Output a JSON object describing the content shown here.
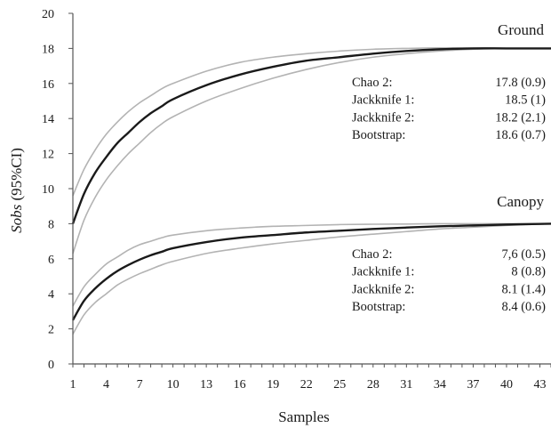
{
  "chart_data": {
    "type": "line",
    "xlabel": "Samples",
    "ylabel_italic": "Sobs",
    "ylabel_rest": " (95%CI)",
    "xlim": [
      1,
      44
    ],
    "ylim": [
      0,
      20
    ],
    "xticks": [
      1,
      4,
      7,
      10,
      13,
      16,
      19,
      22,
      25,
      28,
      31,
      34,
      37,
      40,
      43
    ],
    "yticks": [
      0,
      2,
      4,
      6,
      8,
      10,
      12,
      14,
      16,
      18,
      20
    ],
    "grid": false,
    "colors": {
      "mean": "#1a1a1a",
      "ci": "#b3b3b3",
      "axis": "#555555"
    },
    "groups": [
      {
        "name": "Ground",
        "mean": [
          [
            1,
            8.0
          ],
          [
            2,
            9.7
          ],
          [
            3,
            10.9
          ],
          [
            4,
            11.8
          ],
          [
            5,
            12.6
          ],
          [
            6,
            13.2
          ],
          [
            7,
            13.8
          ],
          [
            8,
            14.3
          ],
          [
            9,
            14.7
          ],
          [
            10,
            15.1
          ],
          [
            13,
            15.9
          ],
          [
            16,
            16.5
          ],
          [
            19,
            16.95
          ],
          [
            22,
            17.3
          ],
          [
            25,
            17.5
          ],
          [
            28,
            17.7
          ],
          [
            31,
            17.85
          ],
          [
            34,
            17.95
          ],
          [
            37,
            18.0
          ],
          [
            40,
            18.0
          ],
          [
            44,
            18.0
          ]
        ],
        "upper": [
          [
            1,
            9.6
          ],
          [
            2,
            11.1
          ],
          [
            3,
            12.2
          ],
          [
            4,
            13.1
          ],
          [
            5,
            13.8
          ],
          [
            6,
            14.4
          ],
          [
            7,
            14.9
          ],
          [
            8,
            15.3
          ],
          [
            9,
            15.7
          ],
          [
            10,
            16.0
          ],
          [
            13,
            16.7
          ],
          [
            16,
            17.2
          ],
          [
            19,
            17.5
          ],
          [
            22,
            17.7
          ],
          [
            25,
            17.85
          ],
          [
            28,
            17.95
          ],
          [
            31,
            18.0
          ],
          [
            34,
            18.03
          ],
          [
            37,
            18.02
          ],
          [
            40,
            18.0
          ],
          [
            44,
            18.0
          ]
        ],
        "lower": [
          [
            1,
            6.3
          ],
          [
            2,
            8.2
          ],
          [
            3,
            9.5
          ],
          [
            4,
            10.5
          ],
          [
            5,
            11.3
          ],
          [
            6,
            12.0
          ],
          [
            7,
            12.6
          ],
          [
            8,
            13.2
          ],
          [
            9,
            13.7
          ],
          [
            10,
            14.1
          ],
          [
            13,
            15.0
          ],
          [
            16,
            15.7
          ],
          [
            19,
            16.3
          ],
          [
            22,
            16.8
          ],
          [
            25,
            17.2
          ],
          [
            28,
            17.5
          ],
          [
            31,
            17.7
          ],
          [
            34,
            17.85
          ],
          [
            37,
            17.95
          ],
          [
            40,
            18.0
          ],
          [
            44,
            18.0
          ]
        ],
        "estimators": [
          {
            "label": "Chao 2:",
            "value": "17.8 (0.9)"
          },
          {
            "label": "Jackknife 1:",
            "value": "18.5 (1)"
          },
          {
            "label": "Jackknife 2:",
            "value": "18.2 (2.1)"
          },
          {
            "label": "Bootstrap:",
            "value": "18.6 (0.7)"
          }
        ]
      },
      {
        "name": "Canopy",
        "mean": [
          [
            1,
            2.5
          ],
          [
            2,
            3.6
          ],
          [
            3,
            4.3
          ],
          [
            4,
            4.85
          ],
          [
            5,
            5.3
          ],
          [
            6,
            5.65
          ],
          [
            7,
            5.95
          ],
          [
            8,
            6.2
          ],
          [
            9,
            6.4
          ],
          [
            10,
            6.6
          ],
          [
            13,
            6.95
          ],
          [
            16,
            7.2
          ],
          [
            19,
            7.35
          ],
          [
            22,
            7.5
          ],
          [
            25,
            7.6
          ],
          [
            28,
            7.7
          ],
          [
            31,
            7.78
          ],
          [
            34,
            7.85
          ],
          [
            37,
            7.9
          ],
          [
            40,
            7.95
          ],
          [
            44,
            8.0
          ]
        ],
        "upper": [
          [
            1,
            3.3
          ],
          [
            2,
            4.4
          ],
          [
            3,
            5.1
          ],
          [
            4,
            5.7
          ],
          [
            5,
            6.1
          ],
          [
            6,
            6.5
          ],
          [
            7,
            6.8
          ],
          [
            8,
            7.0
          ],
          [
            9,
            7.2
          ],
          [
            10,
            7.35
          ],
          [
            13,
            7.6
          ],
          [
            16,
            7.75
          ],
          [
            19,
            7.85
          ],
          [
            22,
            7.9
          ],
          [
            25,
            7.95
          ],
          [
            28,
            7.97
          ],
          [
            31,
            7.98
          ],
          [
            34,
            8.0
          ],
          [
            37,
            8.0
          ],
          [
            40,
            8.0
          ],
          [
            44,
            8.0
          ]
        ],
        "lower": [
          [
            1,
            1.7
          ],
          [
            2,
            2.8
          ],
          [
            3,
            3.5
          ],
          [
            4,
            4.0
          ],
          [
            5,
            4.5
          ],
          [
            6,
            4.85
          ],
          [
            7,
            5.15
          ],
          [
            8,
            5.4
          ],
          [
            9,
            5.65
          ],
          [
            10,
            5.85
          ],
          [
            13,
            6.3
          ],
          [
            16,
            6.6
          ],
          [
            19,
            6.85
          ],
          [
            22,
            7.05
          ],
          [
            25,
            7.25
          ],
          [
            28,
            7.4
          ],
          [
            31,
            7.55
          ],
          [
            34,
            7.7
          ],
          [
            37,
            7.8
          ],
          [
            40,
            7.9
          ],
          [
            44,
            8.0
          ]
        ],
        "estimators": [
          {
            "label": "Chao 2:",
            "value": "7,6 (0.5)"
          },
          {
            "label": "Jackknife 1:",
            "value": "8 (0.8)"
          },
          {
            "label": "Jackknife 2:",
            "value": "8.1 (1.4)"
          },
          {
            "label": "Bootstrap:",
            "value": "8.4 (0.6)"
          }
        ]
      }
    ]
  }
}
